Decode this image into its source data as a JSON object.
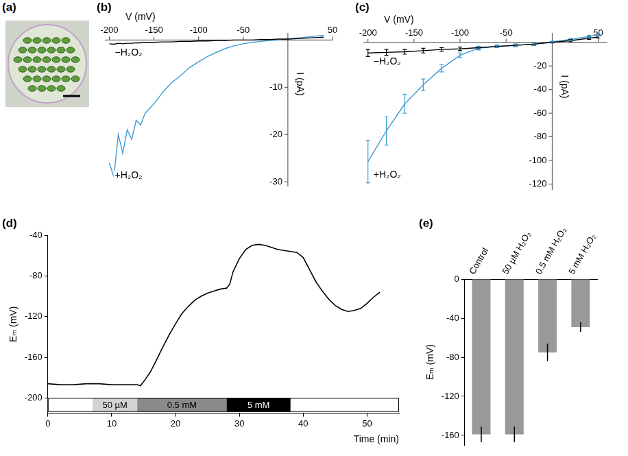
{
  "chart_data": [
    {
      "panel_label": "(a)",
      "type": "image"
    },
    {
      "panel_label": "(b)",
      "type": "line",
      "x_label": "V (mV)",
      "y_label": "I (pA)",
      "grid": false,
      "x": [
        -200,
        -195,
        -190,
        -185,
        -180,
        -175,
        -170,
        -165,
        -160,
        -150,
        -140,
        -130,
        -120,
        -110,
        -100,
        -90,
        -80,
        -70,
        -60,
        -50,
        -40,
        -30,
        -20,
        -10,
        0,
        10,
        20,
        30,
        40
      ],
      "series": [
        {
          "name": "−H₂O₂",
          "color": "#000000",
          "values": [
            -0.8,
            -0.9,
            -0.7,
            -0.8,
            -0.7,
            -0.7,
            -0.6,
            -0.6,
            -0.5,
            -0.5,
            -0.4,
            -0.4,
            -0.3,
            -0.3,
            -0.2,
            -0.2,
            -0.1,
            -0.1,
            0,
            0,
            0,
            0.1,
            0.1,
            0.2,
            0.2,
            0.3,
            0.4,
            0.5,
            0.6
          ]
        },
        {
          "name": "+H₂O₂",
          "color": "#3d9bd4",
          "values": [
            -26,
            -29,
            -20,
            -24,
            -19,
            -21,
            -17,
            -18,
            -15.5,
            -13.5,
            -11,
            -9,
            -7.5,
            -5.8,
            -4.6,
            -3.5,
            -2.6,
            -1.8,
            -1.2,
            -0.8,
            -0.5,
            -0.3,
            -0.1,
            0,
            0.2,
            0.4,
            0.6,
            0.8,
            1.0
          ]
        }
      ],
      "xlim": [
        -205,
        50
      ],
      "xticks": [
        -200,
        -150,
        -100,
        -50,
        50
      ],
      "ylim": [
        -31,
        1.5
      ],
      "yticks": [
        -10,
        -20,
        -30
      ]
    },
    {
      "panel_label": "(c)",
      "type": "line",
      "x_label": "V (mV)",
      "y_label": "I (pA)",
      "grid": false,
      "x": [
        -200,
        -180,
        -160,
        -140,
        -120,
        -100,
        -80,
        -60,
        -40,
        -20,
        0,
        20,
        40,
        50
      ],
      "series": [
        {
          "name": "−H₂O₂",
          "color": "#000000",
          "values": [
            -9,
            -8.5,
            -8,
            -7,
            -6,
            -5.5,
            -4.5,
            -3.5,
            -2.5,
            -1.5,
            0,
            1.5,
            3.5,
            4.5
          ],
          "errors": [
            3,
            2.5,
            2,
            2,
            1.5,
            1.5,
            1,
            1,
            1,
            1,
            0.5,
            1,
            1,
            1
          ]
        },
        {
          "name": "+H₂O₂",
          "color": "#3d9bd4",
          "values": [
            -101,
            -75,
            -52,
            -36,
            -22,
            -11,
            -5,
            -3.5,
            -2.5,
            -1.5,
            0.5,
            2.5,
            5,
            6.5
          ],
          "errors": [
            18,
            12,
            8,
            5,
            3,
            2,
            1.5,
            1,
            1,
            1,
            0.5,
            1,
            1,
            1
          ]
        }
      ],
      "xlim": [
        -205,
        60
      ],
      "xticks": [
        -200,
        -150,
        -100,
        -50,
        50
      ],
      "ylim": [
        -125,
        8
      ],
      "yticks": [
        -20,
        -40,
        -60,
        -80,
        -100,
        -120
      ]
    },
    {
      "panel_label": "(d)",
      "type": "line",
      "x_label": "Time (min)",
      "y_label": "Eₘ (mV)",
      "grid": false,
      "x": [
        0,
        2,
        4,
        6,
        8,
        10,
        12,
        14,
        14.5,
        15,
        16,
        17,
        18,
        19,
        20,
        21,
        22,
        23,
        24,
        25,
        26,
        27,
        28,
        28.5,
        29,
        30,
        31,
        32,
        33,
        34,
        35,
        36,
        37,
        38,
        39,
        40,
        41,
        42,
        43,
        44,
        45,
        46,
        47,
        48,
        49,
        50,
        51,
        52
      ],
      "values": [
        -186,
        -187,
        -187,
        -186,
        -186,
        -187,
        -187,
        -187,
        -188,
        -184,
        -175,
        -163,
        -150,
        -138,
        -127,
        -117,
        -110,
        -104,
        -100,
        -97,
        -95,
        -93,
        -92,
        -88,
        -76,
        -63,
        -54,
        -50,
        -49,
        -50,
        -52,
        -54,
        -55,
        -56,
        -57,
        -62,
        -74,
        -86,
        -95,
        -103,
        -109,
        -113,
        -115,
        -114,
        -112,
        -107,
        -101,
        -96
      ],
      "color": "#000000",
      "xlim": [
        0,
        55
      ],
      "xticks": [
        0,
        10,
        20,
        30,
        40,
        50
      ],
      "ylim": [
        -215,
        -40
      ],
      "yticks": [
        -200,
        -160,
        -120,
        -80,
        -40
      ],
      "treatments": [
        {
          "label": "50 µM",
          "start": 7,
          "end": 14,
          "color": "#d3d3d3"
        },
        {
          "label": "0.5 mM",
          "start": 14,
          "end": 28,
          "color": "#8a8a8a"
        },
        {
          "label": "5 mM",
          "start": 28,
          "end": 38,
          "color": "#000000"
        }
      ]
    },
    {
      "panel_label": "(e)",
      "type": "bar",
      "y_label": "Eₘ (mV)",
      "grid": false,
      "categories": [
        "Control",
        "50 µM H₂O₂",
        "0.5 mM H₂O₂",
        "5 mM H₂O₂"
      ],
      "values": [
        -159,
        -159,
        -75,
        -49
      ],
      "errors": [
        8,
        8,
        9,
        5
      ],
      "color": "#999999",
      "ylim": [
        -170,
        0
      ],
      "yticks": [
        -160,
        -120,
        -80,
        -40,
        0
      ]
    }
  ]
}
